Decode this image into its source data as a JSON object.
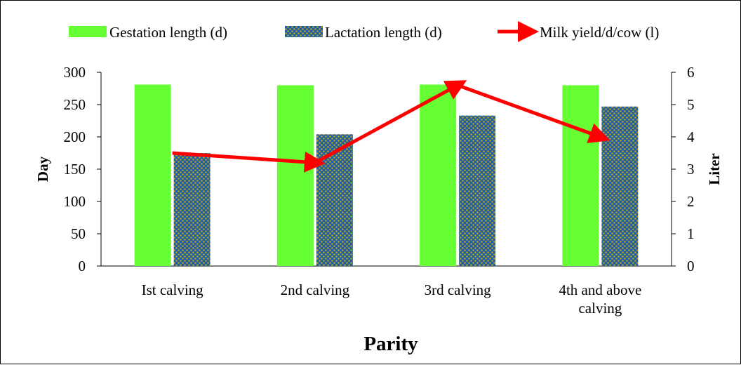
{
  "chart_data": {
    "type": "bar+line",
    "categories": [
      [
        "Ist calving"
      ],
      [
        "2nd calving"
      ],
      [
        "3rd calving"
      ],
      [
        "4th and above",
        "calving"
      ]
    ],
    "series": [
      {
        "name": "Gestation length (d)",
        "type": "bar",
        "axis": "left",
        "color": "#66ff33",
        "values": [
          281,
          280,
          281,
          280
        ]
      },
      {
        "name": "Lactation length (d)",
        "type": "bar",
        "axis": "left",
        "color": "#1f5f9f",
        "pattern_color": "#b5a22a",
        "values": [
          175,
          204,
          233,
          247
        ]
      },
      {
        "name": "Milk yield/d/cow (l)",
        "type": "line",
        "axis": "right",
        "color": "#ff0000",
        "values": [
          3.5,
          3.2,
          5.6,
          4.0
        ]
      }
    ],
    "xlabel": "Parity",
    "ylabel": "Day",
    "ylabel_right": "Liter",
    "ylim": [
      0,
      300
    ],
    "ylim_right": [
      0,
      6
    ],
    "yticks": [
      0,
      50,
      100,
      150,
      200,
      250,
      300
    ],
    "yticks_right": [
      0,
      1,
      2,
      3,
      4,
      5,
      6
    ],
    "legend_position": "top"
  }
}
